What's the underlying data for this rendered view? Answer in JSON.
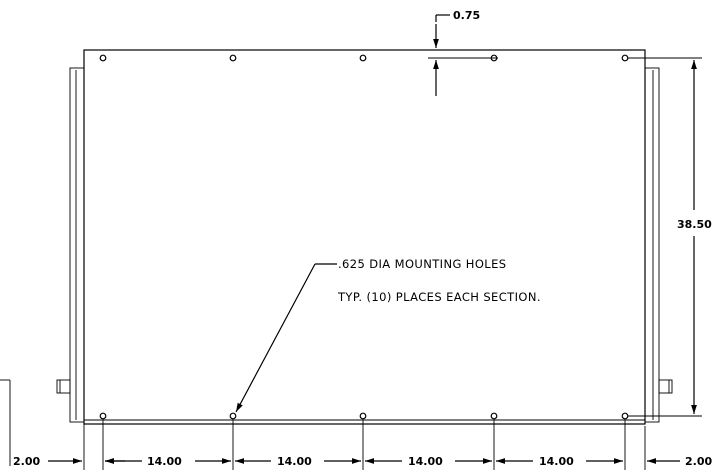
{
  "dimensions": {
    "top_offset": "0.75",
    "height": "38.50",
    "edge_left": "2.00",
    "edge_right": "2.00",
    "spacing": [
      "14.00",
      "14.00",
      "14.00",
      "14.00"
    ]
  },
  "note": {
    "line1": ".625 DIA MOUNTING HOLES",
    "line2": "TYP. (10) PLACES EACH SECTION."
  }
}
